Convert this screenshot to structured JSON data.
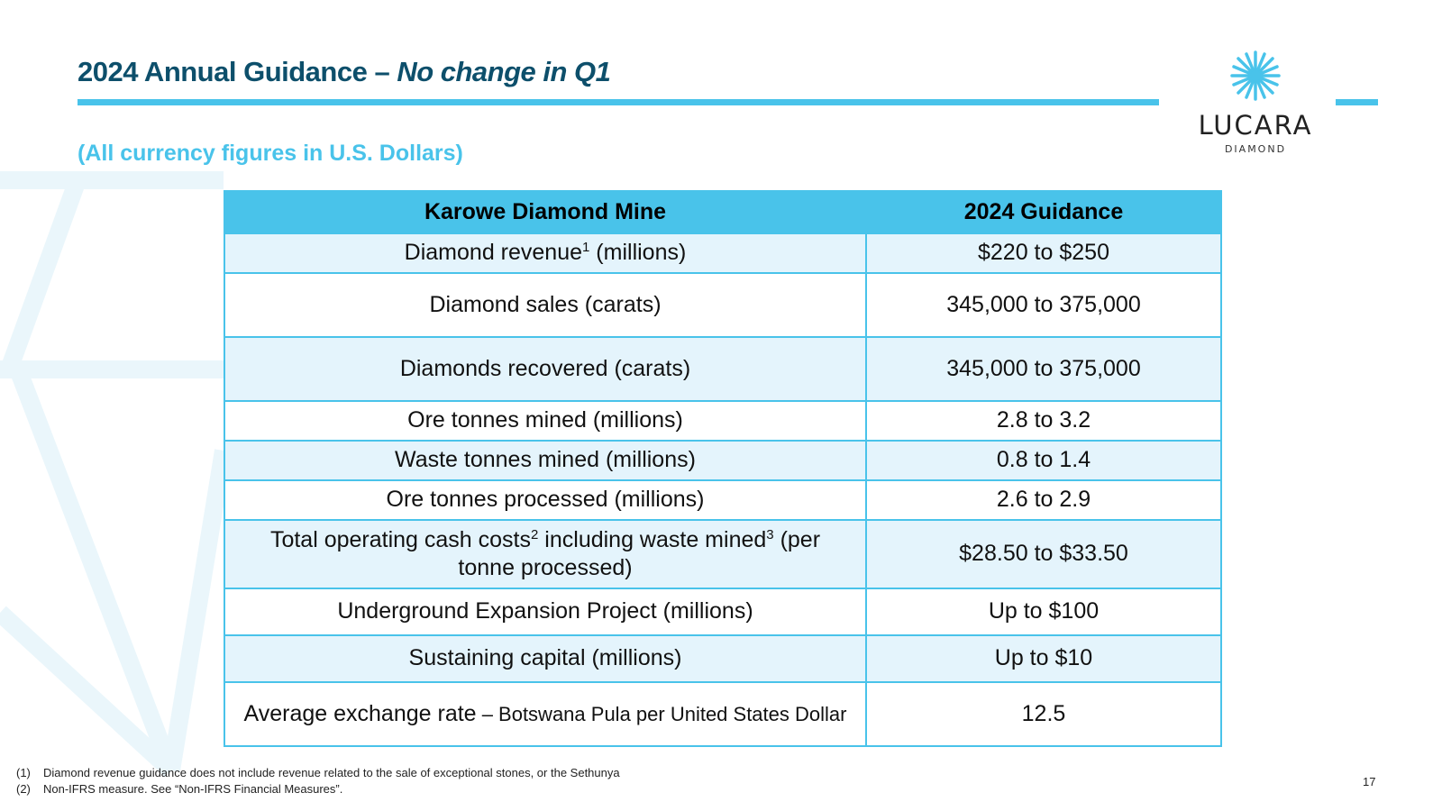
{
  "slide": {
    "title_main": "2024 Annual Guidance – ",
    "title_emphasis": "No change in Q1",
    "subtitle": "(All currency figures in U.S. Dollars)",
    "page_number": "17"
  },
  "logo": {
    "name": "LUCARA",
    "tagline": "DIAMOND"
  },
  "colors": {
    "accent": "#49c3ea",
    "title": "#0d4f6b",
    "row_tint": "#e4f4fc"
  },
  "table": {
    "headers": [
      "Karowe Diamond Mine",
      "2024 Guidance"
    ],
    "rows": [
      {
        "label": "Diamond revenue",
        "sup1": "1",
        "label_rest": " (millions)",
        "value": "$220 to $250"
      },
      {
        "label": "Diamond sales (carats)",
        "value": "345,000 to 375,000"
      },
      {
        "label": "Diamonds recovered (carats)",
        "value": "345,000 to 375,000"
      },
      {
        "label": "Ore tonnes mined (millions)",
        "value": "2.8 to 3.2"
      },
      {
        "label": "Waste tonnes mined (millions)",
        "value": "0.8 to 1.4"
      },
      {
        "label": "Ore tonnes processed (millions)",
        "value": "2.6 to 2.9"
      },
      {
        "label": "Total operating cash costs",
        "sup1": "2",
        "label_mid": " including waste mined",
        "sup2": "3",
        "label_rest": " (per tonne processed)",
        "value": "$28.50 to $33.50"
      },
      {
        "label": "Underground Expansion Project (millions)",
        "value": "Up to $100"
      },
      {
        "label": "Sustaining capital (millions)",
        "value": "Up to $10"
      },
      {
        "label": "Average exchange rate",
        "label_rest": " – Botswana Pula per United States Dollar",
        "value": "12.5"
      }
    ]
  },
  "footnotes": [
    {
      "num": "(1)",
      "text": "Diamond revenue guidance does not include revenue related to the sale of exceptional stones, or the Sethunya"
    },
    {
      "num": "(2)",
      "text": "Non-IFRS measure. See “Non-IFRS Financial Measures”."
    }
  ]
}
